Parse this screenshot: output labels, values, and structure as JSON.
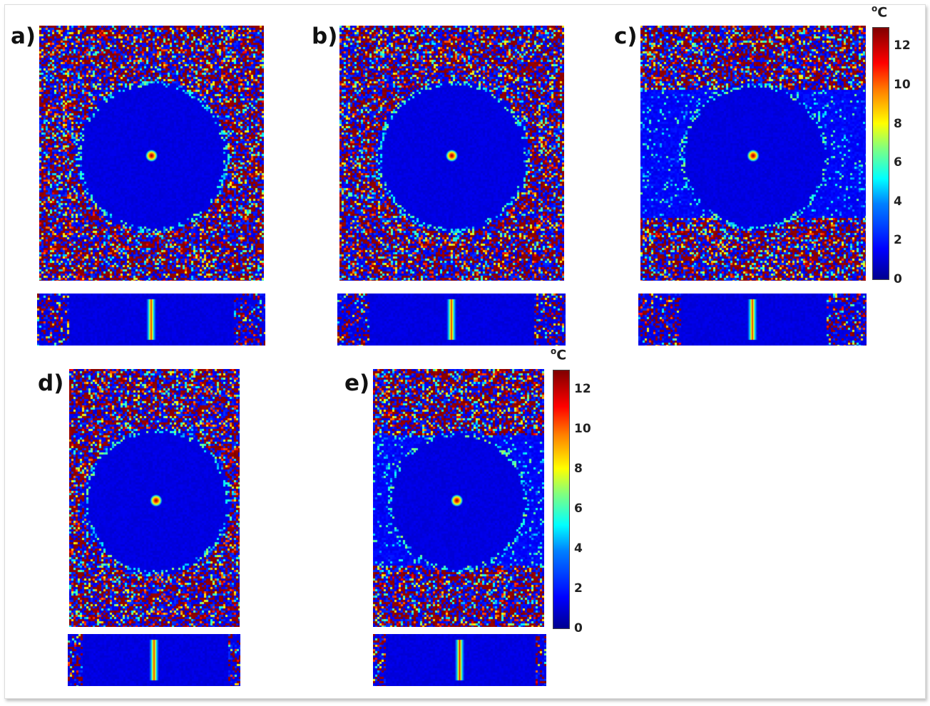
{
  "panels": [
    {
      "label": "a)"
    },
    {
      "label": "b)"
    },
    {
      "label": "c)"
    },
    {
      "label": "d)"
    },
    {
      "label": "e)"
    }
  ],
  "colorbar": {
    "unit_sup": "o",
    "unit": "C",
    "ticks": [
      "12",
      "10",
      "8",
      "6",
      "4",
      "2",
      "0"
    ],
    "range": [
      0,
      13
    ],
    "colormap": "jet"
  }
}
